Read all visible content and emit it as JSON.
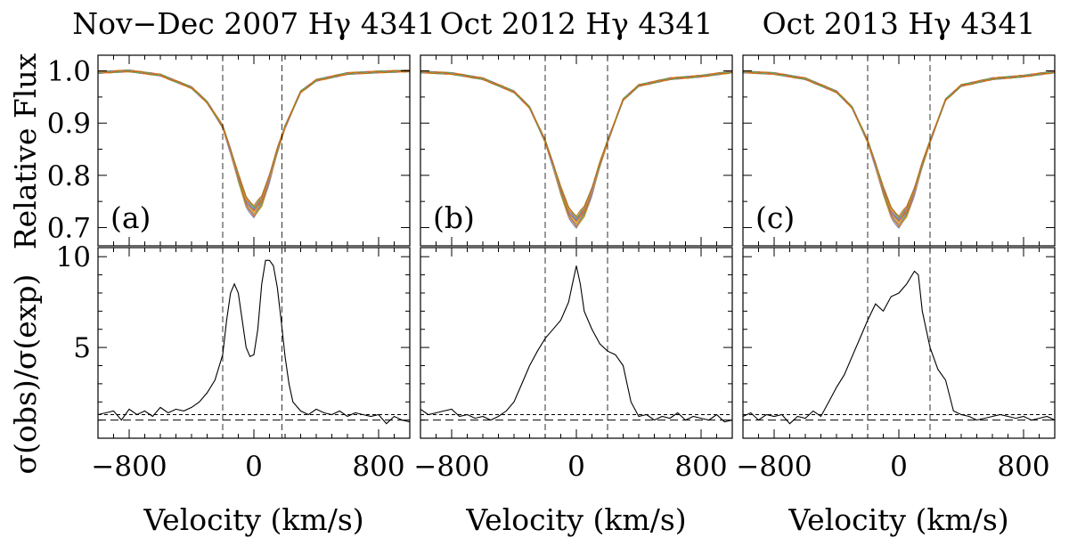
{
  "figure": {
    "ylabel_top": "Relative Flux",
    "ylabel_bottom": "σ(obs)/σ(exp)"
  },
  "chart_data": [
    {
      "type": "line",
      "panel": "a",
      "title": "Nov−Dec 2007 Hγ 4341",
      "panel_label": "(a)",
      "xlabel": "Velocity (km/s)",
      "xlim": [
        -1000,
        1000
      ],
      "xticks": [
        -800,
        0,
        800
      ],
      "xtick_labels": [
        "−800",
        "0",
        "800"
      ],
      "top": {
        "ylabel": "Relative Flux",
        "ylim": [
          0.665,
          1.03
        ],
        "yticks": [
          0.7,
          0.8,
          0.9,
          1.0
        ],
        "ytick_labels": [
          "0.7",
          "0.8",
          "0.9",
          "1.0"
        ],
        "profile": {
          "center": 0,
          "depth": 0.27,
          "width": 130,
          "lw": 105,
          "x": [
            -1000,
            -800,
            -600,
            -400,
            -300,
            -200,
            -150,
            -100,
            -50,
            0,
            50,
            100,
            150,
            200,
            300,
            400,
            600,
            800,
            1000
          ],
          "y": [
            0.997,
            1.0,
            0.992,
            0.968,
            0.94,
            0.893,
            0.847,
            0.795,
            0.75,
            0.73,
            0.75,
            0.795,
            0.847,
            0.893,
            0.96,
            0.982,
            0.995,
            0.998,
            1.0
          ]
        },
        "n_spectra": 16
      },
      "bottom": {
        "ylabel": "σ(obs)/σ(exp)",
        "ylim": [
          0,
          10.5
        ],
        "yticks": [
          5,
          10
        ],
        "ytick_labels": [
          "5",
          "10"
        ],
        "x": [
          -1000,
          -950,
          -900,
          -850,
          -800,
          -750,
          -700,
          -650,
          -600,
          -550,
          -500,
          -450,
          -400,
          -350,
          -300,
          -250,
          -200,
          -175,
          -150,
          -125,
          -100,
          -75,
          -50,
          -25,
          0,
          25,
          50,
          75,
          100,
          125,
          150,
          175,
          200,
          225,
          250,
          300,
          350,
          400,
          450,
          500,
          550,
          600,
          650,
          700,
          750,
          800,
          850,
          900,
          950,
          1000
        ],
        "y": [
          1.3,
          1.4,
          1.5,
          1.0,
          1.6,
          1.3,
          1.5,
          1.2,
          1.7,
          1.4,
          1.6,
          1.5,
          1.7,
          2.0,
          2.5,
          3.2,
          4.6,
          6.5,
          8.0,
          8.5,
          8.0,
          6.5,
          5.0,
          4.5,
          4.6,
          6.0,
          8.5,
          9.8,
          9.8,
          9.5,
          8.3,
          6.5,
          4.5,
          3.0,
          2.0,
          1.5,
          1.3,
          1.6,
          1.4,
          1.3,
          1.5,
          1.2,
          1.4,
          1.3,
          1.2,
          1.3,
          0.8,
          1.2,
          1.0,
          0.9
        ],
        "ref_lines": [
          1.0,
          1.3
        ]
      },
      "vlines": [
        -200,
        180
      ]
    },
    {
      "type": "line",
      "panel": "b",
      "title": "Oct 2012 Hγ 4341",
      "panel_label": "(b)",
      "xlabel": "Velocity (km/s)",
      "xlim": [
        -1000,
        1000
      ],
      "xticks": [
        -800,
        0,
        800
      ],
      "xtick_labels": [
        "−800",
        "0",
        "800"
      ],
      "top": {
        "ylabel": "Relative Flux",
        "ylim": [
          0.665,
          1.03
        ],
        "yticks": [
          0.7,
          0.8,
          0.9,
          1.0
        ],
        "ytick_labels": [
          "0.7",
          "0.8",
          "0.9",
          "1.0"
        ],
        "profile": {
          "center": 0,
          "depth": 0.29,
          "width": 125,
          "lw": 100,
          "x": [
            -1000,
            -800,
            -600,
            -400,
            -300,
            -200,
            -150,
            -100,
            -50,
            0,
            50,
            100,
            150,
            200,
            300,
            400,
            600,
            800,
            1000
          ],
          "y": [
            0.998,
            0.995,
            0.985,
            0.96,
            0.93,
            0.865,
            0.82,
            0.77,
            0.73,
            0.71,
            0.73,
            0.77,
            0.82,
            0.865,
            0.945,
            0.972,
            0.985,
            0.99,
            0.998
          ]
        },
        "n_spectra": 16
      },
      "bottom": {
        "ylabel": "σ(obs)/σ(exp)",
        "ylim": [
          0,
          10.5
        ],
        "yticks": [
          5,
          10
        ],
        "ytick_labels": [
          "5",
          "10"
        ],
        "x": [
          -1000,
          -950,
          -900,
          -850,
          -800,
          -750,
          -700,
          -650,
          -600,
          -550,
          -500,
          -450,
          -400,
          -350,
          -300,
          -250,
          -200,
          -150,
          -100,
          -50,
          -25,
          0,
          25,
          50,
          75,
          100,
          150,
          200,
          250,
          300,
          350,
          400,
          450,
          500,
          550,
          600,
          650,
          700,
          750,
          800,
          850,
          900,
          950,
          1000
        ],
        "y": [
          1.6,
          1.3,
          1.4,
          1.5,
          1.6,
          1.2,
          1.3,
          1.1,
          1.2,
          1.0,
          1.2,
          1.5,
          2.0,
          3.0,
          4.0,
          4.8,
          5.5,
          6.0,
          6.5,
          7.5,
          8.5,
          9.5,
          8.5,
          7.0,
          6.5,
          6.0,
          5.2,
          4.8,
          4.6,
          4.0,
          2.0,
          1.2,
          1.3,
          1.0,
          1.2,
          1.1,
          1.4,
          1.0,
          1.2,
          1.1,
          1.0,
          1.3,
          0.9,
          1.0
        ],
        "ref_lines": [
          1.0,
          1.3
        ]
      },
      "vlines": [
        -200,
        200
      ]
    },
    {
      "type": "line",
      "panel": "c",
      "title": "Oct 2013 Hγ 4341",
      "panel_label": "(c)",
      "xlabel": "Velocity (km/s)",
      "xlim": [
        -1000,
        1000
      ],
      "xticks": [
        -800,
        0,
        800
      ],
      "xtick_labels": [
        "−800",
        "0",
        "800"
      ],
      "top": {
        "ylabel": "Relative Flux",
        "ylim": [
          0.665,
          1.03
        ],
        "yticks": [
          0.7,
          0.8,
          0.9,
          1.0
        ],
        "ytick_labels": [
          "0.7",
          "0.8",
          "0.9",
          "1.0"
        ],
        "profile": {
          "center": 0,
          "depth": 0.29,
          "width": 125,
          "lw": 100,
          "x": [
            -1000,
            -800,
            -600,
            -400,
            -300,
            -200,
            -150,
            -100,
            -50,
            0,
            50,
            100,
            150,
            200,
            300,
            400,
            600,
            800,
            1000
          ],
          "y": [
            0.998,
            0.995,
            0.985,
            0.96,
            0.93,
            0.865,
            0.82,
            0.77,
            0.73,
            0.71,
            0.73,
            0.77,
            0.82,
            0.865,
            0.945,
            0.972,
            0.985,
            0.99,
            0.998
          ]
        },
        "n_spectra": 16
      },
      "bottom": {
        "ylabel": "σ(obs)/σ(exp)",
        "ylim": [
          0,
          10.5
        ],
        "yticks": [
          5,
          10
        ],
        "ytick_labels": [
          "5",
          "10"
        ],
        "x": [
          -1000,
          -950,
          -900,
          -850,
          -800,
          -750,
          -700,
          -650,
          -600,
          -550,
          -500,
          -450,
          -400,
          -350,
          -300,
          -250,
          -200,
          -150,
          -100,
          -50,
          0,
          50,
          100,
          125,
          150,
          200,
          250,
          300,
          350,
          400,
          450,
          500,
          550,
          600,
          650,
          700,
          750,
          800,
          850,
          900,
          950,
          1000
        ],
        "y": [
          1.2,
          1.4,
          1.0,
          1.3,
          1.2,
          1.3,
          0.8,
          1.2,
          1.1,
          1.5,
          1.2,
          2.0,
          2.8,
          3.5,
          4.5,
          5.5,
          6.5,
          7.4,
          7.0,
          7.8,
          8.0,
          8.5,
          9.2,
          9.0,
          7.0,
          5.0,
          3.8,
          3.2,
          1.5,
          1.3,
          1.2,
          1.0,
          1.1,
          1.2,
          1.3,
          1.2,
          1.1,
          1.2,
          1.0,
          1.1,
          1.2,
          1.0
        ],
        "ref_lines": [
          1.0,
          1.3
        ]
      },
      "vlines": [
        -200,
        200
      ]
    }
  ]
}
